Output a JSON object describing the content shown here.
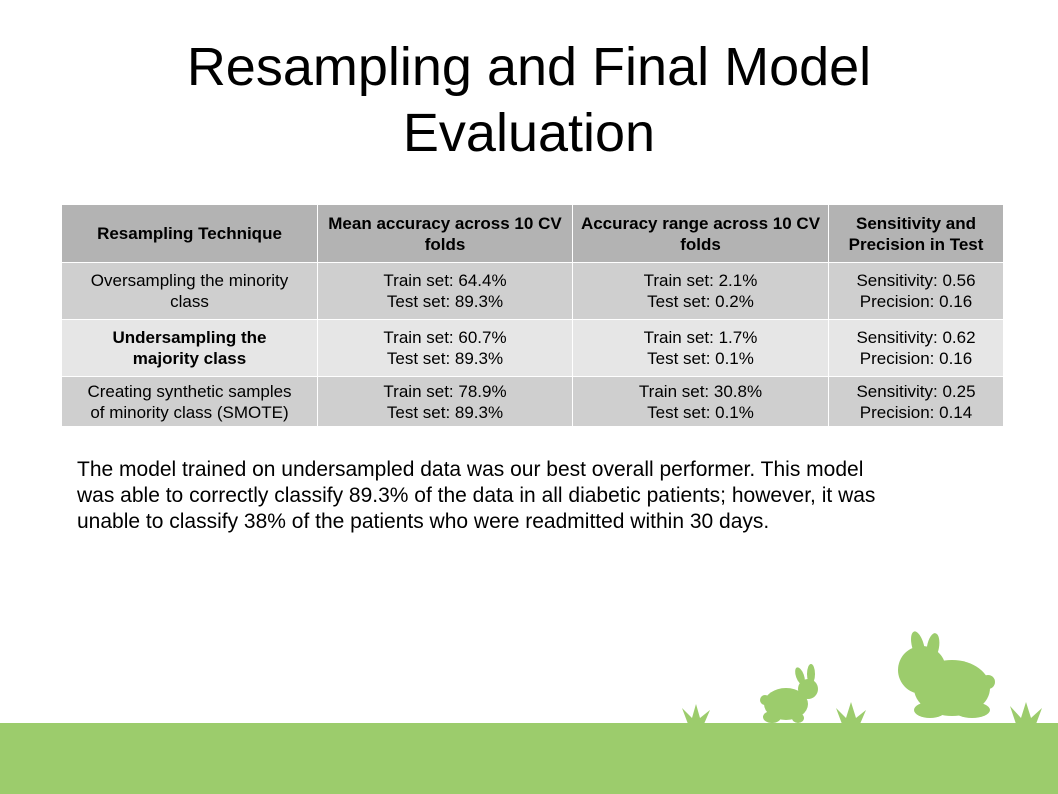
{
  "slide": {
    "title_line1": "Resampling and Final Model",
    "title_line2": "Evaluation"
  },
  "table": {
    "headers": [
      {
        "line1": "Resampling Technique",
        "line2": ""
      },
      {
        "line1": "Mean accuracy across 10",
        "line2": "CV folds"
      },
      {
        "line1": "Accuracy range across 10",
        "line2": "CV folds"
      },
      {
        "line1": "Sensitivity and",
        "line2": "Precision in Test"
      }
    ],
    "rows": [
      {
        "technique": {
          "line1": "Oversampling the minority",
          "line2": "class"
        },
        "mean_accuracy": {
          "train": "Train set: 64.4%",
          "test": "Test set: 89.3%"
        },
        "accuracy_range": {
          "train": "Train set: 2.1%",
          "test": "Test set: 0.2%"
        },
        "sens_prec": {
          "sensitivity": "Sensitivity: 0.56",
          "precision": "Precision: 0.16"
        }
      },
      {
        "technique": {
          "line1": "Undersampling the",
          "line2": "majority class"
        },
        "mean_accuracy": {
          "train": "Train set: 60.7%",
          "test": "Test set: 89.3%"
        },
        "accuracy_range": {
          "train": "Train set: 1.7%",
          "test": "Test set: 0.1%"
        },
        "sens_prec": {
          "sensitivity": "Sensitivity: 0.62",
          "precision": "Precision: 0.16"
        }
      },
      {
        "technique": {
          "line1": "Creating synthetic samples",
          "line2": "of minority class (SMOTE)"
        },
        "mean_accuracy": {
          "train": "Train set: 78.9%",
          "test": "Test set: 89.3%"
        },
        "accuracy_range": {
          "train": "Train set: 30.8%",
          "test": "Test set: 0.1%"
        },
        "sens_prec": {
          "sensitivity": "Sensitivity: 0.25",
          "precision": "Precision: 0.14"
        }
      }
    ]
  },
  "summary": {
    "line1": "The model trained on undersampled data was our best overall performer. This model",
    "line2": "was able to correctly classify 89.3% of the data in all diabetic patients; however, it was",
    "line3": "unable to classify 38% of the patients who were readmitted within 30 days."
  },
  "colors": {
    "header_bg": "#b3b3b3",
    "row_dark": "#cfcfcf",
    "row_light": "#e6e6e6",
    "grass": "#9ccc6c"
  },
  "decor": {
    "icons": [
      "rabbit-large-icon",
      "rabbit-small-icon",
      "grass-tuft-icon"
    ]
  }
}
